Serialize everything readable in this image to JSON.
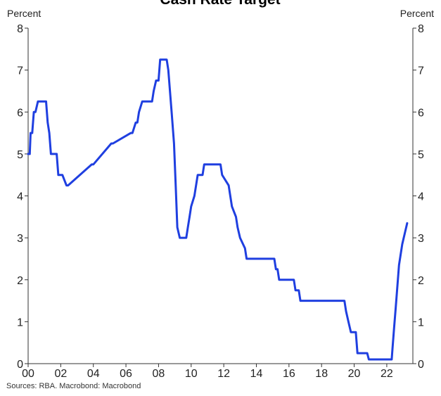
{
  "chart_data": {
    "type": "line",
    "title": "Cash Rate Target",
    "ylabel_left": "Percent",
    "ylabel_right": "Percent",
    "ylim": [
      0,
      8
    ],
    "yticks": [
      0,
      1,
      2,
      3,
      4,
      5,
      6,
      7,
      8
    ],
    "xlim": [
      2000,
      2023.6
    ],
    "xticks": [
      {
        "value": 2000,
        "label": "00"
      },
      {
        "value": 2002,
        "label": "02"
      },
      {
        "value": 2004,
        "label": "04"
      },
      {
        "value": 2006,
        "label": "06"
      },
      {
        "value": 2008,
        "label": "08"
      },
      {
        "value": 2010,
        "label": "10"
      },
      {
        "value": 2012,
        "label": "12"
      },
      {
        "value": 2014,
        "label": "14"
      },
      {
        "value": 2016,
        "label": "16"
      },
      {
        "value": 2018,
        "label": "18"
      },
      {
        "value": 2020,
        "label": "20"
      },
      {
        "value": 2022,
        "label": "22"
      }
    ],
    "grid": false,
    "series": [
      {
        "color": "#1f3fe0",
        "x": [
          2000.0,
          2000.1,
          2000.15,
          2000.25,
          2000.35,
          2000.45,
          2000.6,
          2000.7,
          2001.1,
          2001.2,
          2001.3,
          2001.4,
          2001.6,
          2001.75,
          2001.85,
          2002.1,
          2002.35,
          2002.45,
          2003.9,
          2004.0,
          2005.1,
          2005.2,
          2006.3,
          2006.4,
          2006.6,
          2006.7,
          2006.8,
          2007.0,
          2007.6,
          2007.7,
          2007.85,
          2008.0,
          2008.1,
          2008.5,
          2008.6,
          2008.8,
          2008.95,
          2009.05,
          2009.15,
          2009.3,
          2009.7,
          2009.8,
          2009.9,
          2010.0,
          2010.2,
          2010.4,
          2010.7,
          2010.8,
          2011.8,
          2011.9,
          2012.3,
          2012.4,
          2012.5,
          2012.75,
          2012.85,
          2013.0,
          2013.3,
          2013.4,
          2013.6,
          2015.1,
          2015.2,
          2015.3,
          2015.4,
          2016.3,
          2016.4,
          2016.6,
          2016.7,
          2019.4,
          2019.5,
          2019.65,
          2019.8,
          2020.1,
          2020.2,
          2020.8,
          2020.9,
          2022.3,
          2022.35,
          2022.45,
          2022.55,
          2022.75,
          2022.95,
          2023.1,
          2023.25
        ],
        "y": [
          5.0,
          5.0,
          5.5,
          5.5,
          6.0,
          6.0,
          6.25,
          6.25,
          6.25,
          5.75,
          5.5,
          5.0,
          5.0,
          5.0,
          4.5,
          4.5,
          4.25,
          4.25,
          4.75,
          4.75,
          5.25,
          5.25,
          5.5,
          5.5,
          5.75,
          5.75,
          6.0,
          6.25,
          6.25,
          6.5,
          6.75,
          6.75,
          7.25,
          7.25,
          7.0,
          6.0,
          5.25,
          4.25,
          3.25,
          3.0,
          3.0,
          3.25,
          3.5,
          3.75,
          4.0,
          4.5,
          4.5,
          4.75,
          4.75,
          4.5,
          4.25,
          4.0,
          3.75,
          3.5,
          3.25,
          3.0,
          2.75,
          2.5,
          2.5,
          2.5,
          2.25,
          2.25,
          2.0,
          2.0,
          1.75,
          1.75,
          1.5,
          1.5,
          1.25,
          1.0,
          0.75,
          0.75,
          0.25,
          0.25,
          0.1,
          0.1,
          0.35,
          0.85,
          1.35,
          2.35,
          2.85,
          3.1,
          3.35
        ]
      }
    ]
  },
  "footer": {
    "source": "Sources: RBA. Macrobond: Macrobond"
  }
}
